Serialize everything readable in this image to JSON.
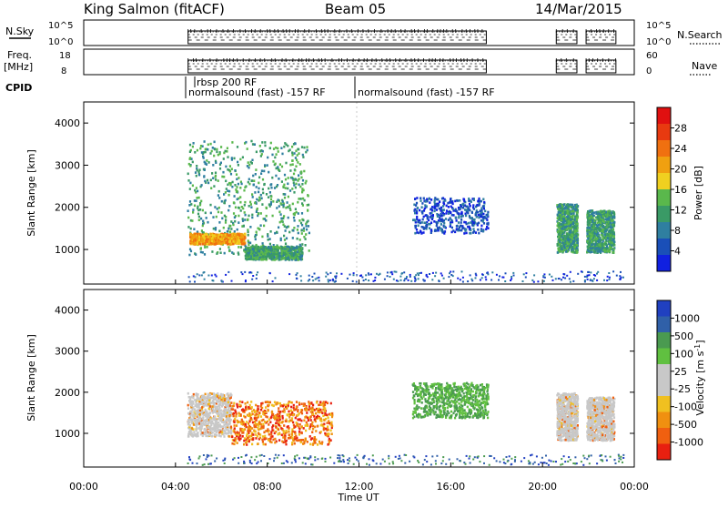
{
  "header": {
    "station": "King Salmon (fitACF)",
    "beam": "Beam 05",
    "date": "14/Mar/2015"
  },
  "strips": {
    "nsky": {
      "label": "N.Sky",
      "ticks_left": [
        "10^5",
        "10^0"
      ],
      "ticks_right": [
        "10^5",
        "10^0"
      ],
      "right_label": "N.Search"
    },
    "freq": {
      "label": "Freq.",
      "unit": "[MHz]",
      "ticks_left": [
        "18",
        "8"
      ],
      "ticks_right": [
        "60",
        "0"
      ],
      "right_label": "Nave"
    },
    "cpid": {
      "label": "CPID",
      "programs": [
        {
          "name": "rbsp 200 RF",
          "start": 5.6
        },
        {
          "name": "normalsound (fast) -157 RF",
          "start": 4.3
        },
        {
          "name": "normalsound (fast) -157 RF",
          "start": 12.0
        }
      ]
    }
  },
  "time_axis": {
    "label": "Time UT",
    "ticks": [
      "00:00",
      "04:00",
      "08:00",
      "12:00",
      "16:00",
      "20:00",
      "00:00"
    ],
    "range_hours": [
      0,
      24
    ]
  },
  "chart_data": [
    {
      "type": "heatmap",
      "name": "power",
      "ylabel": "Slant Range [km]",
      "ylim": [
        180,
        4500
      ],
      "yticks": [
        1000,
        2000,
        3000,
        4000
      ],
      "colorbar": {
        "label": "Power [dB]",
        "ticks": [
          "4",
          "8",
          "12",
          "16",
          "20",
          "24",
          "28"
        ],
        "colors": [
          "#1020e0",
          "#1a4fb8",
          "#2f7fa0",
          "#3a9a66",
          "#5ab84c",
          "#f0d020",
          "#f0a010",
          "#f07010",
          "#e83a10",
          "#e01010"
        ]
      },
      "echo_regions": [
        {
          "t_start": 4.5,
          "t_end": 9.8,
          "r_min": 900,
          "r_max": 3600,
          "level": "medium",
          "dominant_db": 12
        },
        {
          "t_start": 4.6,
          "t_end": 7.0,
          "r_min": 1150,
          "r_max": 1400,
          "level": "strong",
          "dominant_db": 22
        },
        {
          "t_start": 7.0,
          "t_end": 9.5,
          "r_min": 780,
          "r_max": 1100,
          "level": "medium",
          "dominant_db": 14
        },
        {
          "t_start": 14.3,
          "t_end": 17.6,
          "r_min": 1400,
          "r_max": 2250,
          "level": "weak",
          "dominant_db": 6
        },
        {
          "t_start": 20.6,
          "t_end": 21.5,
          "r_min": 950,
          "r_max": 2100,
          "level": "medium",
          "dominant_db": 16
        },
        {
          "t_start": 21.9,
          "t_end": 23.1,
          "r_min": 950,
          "r_max": 1950,
          "level": "medium",
          "dominant_db": 14
        }
      ]
    },
    {
      "type": "heatmap",
      "name": "velocity",
      "ylabel": "Slant Range [km]",
      "ylim": [
        180,
        4500
      ],
      "yticks": [
        1000,
        2000,
        3000,
        4000
      ],
      "colorbar": {
        "label": "Velocity [m s^-1]",
        "ticks": [
          "1000",
          "500",
          "100",
          "25",
          "-25",
          "-100",
          "-500",
          "-1000"
        ],
        "colors": [
          "#2040c0",
          "#3060a8",
          "#4a9a50",
          "#60c040",
          "#c8c8c8",
          "#c8c8c8",
          "#f0c020",
          "#f09010",
          "#f06010",
          "#e82010"
        ]
      },
      "echo_regions": [
        {
          "t_start": 4.5,
          "t_end": 6.4,
          "r_min": 950,
          "r_max": 2000,
          "level": "ground",
          "dominant_velocity": 0
        },
        {
          "t_start": 6.4,
          "t_end": 10.8,
          "r_min": 750,
          "r_max": 1800,
          "level": "away",
          "dominant_velocity": -300
        },
        {
          "t_start": 14.3,
          "t_end": 17.6,
          "r_min": 1400,
          "r_max": 2250,
          "level": "toward",
          "dominant_velocity": 150
        },
        {
          "t_start": 20.6,
          "t_end": 21.5,
          "r_min": 850,
          "r_max": 2000,
          "level": "ground",
          "dominant_velocity": 0
        },
        {
          "t_start": 21.9,
          "t_end": 23.1,
          "r_min": 850,
          "r_max": 1900,
          "level": "ground",
          "dominant_velocity": 0
        }
      ]
    }
  ]
}
